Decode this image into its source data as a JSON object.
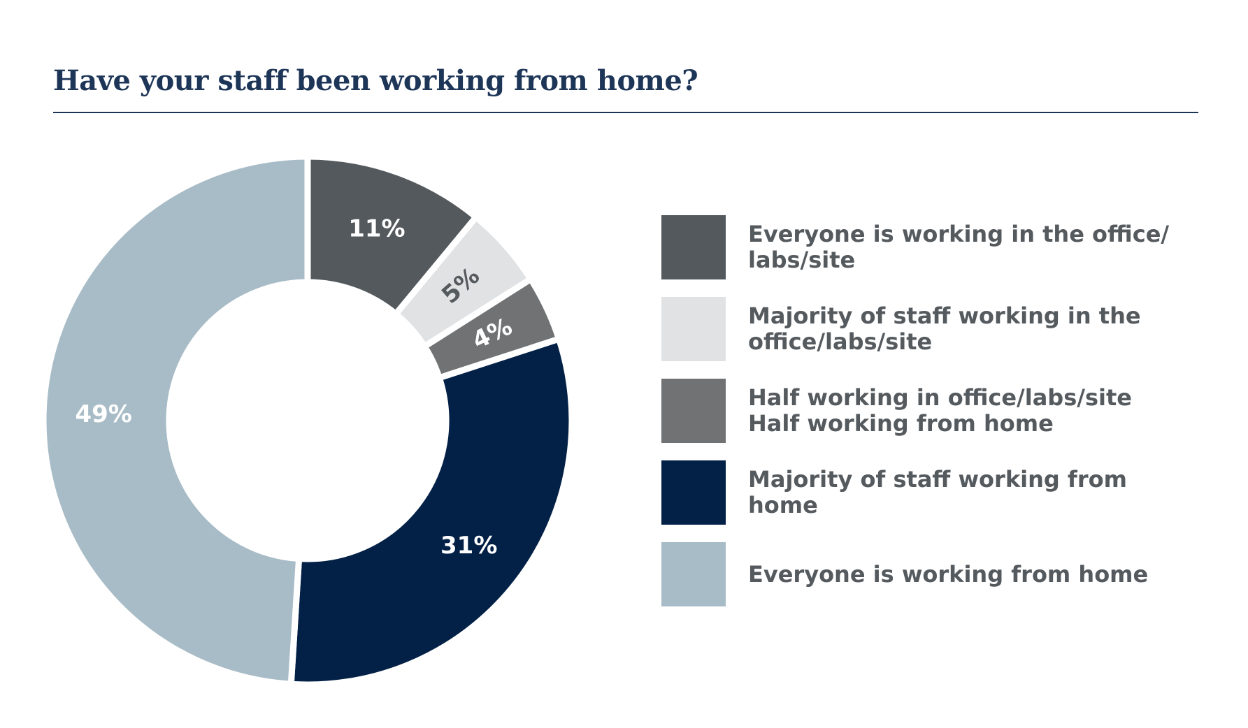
{
  "title": "Have your staff been working from home?",
  "chart_data": {
    "type": "pie",
    "donut": true,
    "title": "Have your staff been working from home?",
    "categories": [
      "Everyone is working in the office/\nlabs/site",
      "Majority of staff working in the\noffice/labs/site",
      "Half working in office/labs/site\nHalf working from home",
      "Majority of staff working from\nhome",
      "Everyone is working from home"
    ],
    "values": [
      11,
      5,
      4,
      31,
      49
    ],
    "labels": [
      "11%",
      "5%",
      "4%",
      "31%",
      "49%"
    ],
    "colors": [
      "#53595d",
      "#e1e2e4",
      "#707274",
      "#032046",
      "#a8bcc7"
    ],
    "legend_position": "right"
  }
}
